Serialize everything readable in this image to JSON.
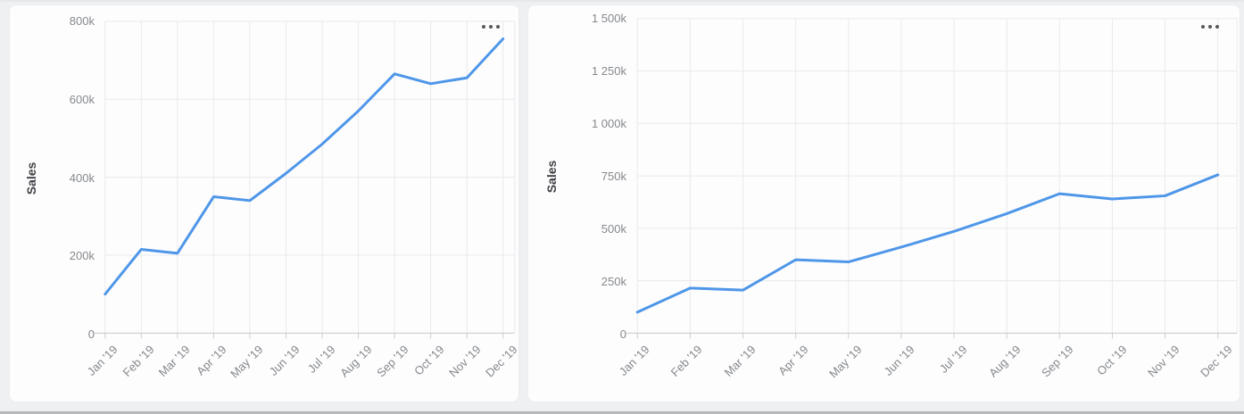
{
  "page": {
    "background": "#eff0f1",
    "card_background": "#fdfdfe"
  },
  "chart_data": [
    {
      "type": "line",
      "title": "",
      "xlabel": "",
      "ylabel": "Sales",
      "categories": [
        "Jan '19",
        "Feb '19",
        "Mar '19",
        "Apr '19",
        "May '19",
        "Jun '19",
        "Jul '19",
        "Aug '19",
        "Sep '19",
        "Oct '19",
        "Nov '19",
        "Dec '19"
      ],
      "series": [
        {
          "name": "Sales",
          "values": [
            100000,
            215000,
            205000,
            350000,
            340000,
            410000,
            485000,
            570000,
            665000,
            640000,
            655000,
            755000
          ]
        }
      ],
      "ylim": [
        0,
        800000
      ],
      "yticks": [
        0,
        200000,
        400000,
        600000,
        800000
      ],
      "ytick_labels": [
        "0",
        "200k",
        "400k",
        "600k",
        "800k"
      ],
      "grid": true,
      "legend": false,
      "line_color": "#4e96e8",
      "context_menu_icon": "ellipsis"
    },
    {
      "type": "line",
      "title": "",
      "xlabel": "",
      "ylabel": "Sales",
      "categories": [
        "Jan '19",
        "Feb '19",
        "Mar '19",
        "Apr '19",
        "May '19",
        "Jun '19",
        "Jul '19",
        "Aug '19",
        "Sep '19",
        "Oct '19",
        "Nov '19",
        "Dec '19"
      ],
      "series": [
        {
          "name": "Sales",
          "values": [
            100000,
            215000,
            205000,
            350000,
            340000,
            410000,
            485000,
            570000,
            665000,
            640000,
            655000,
            755000
          ]
        }
      ],
      "ylim": [
        0,
        1500000
      ],
      "yticks": [
        0,
        250000,
        500000,
        750000,
        1000000,
        1250000,
        1500000
      ],
      "ytick_labels": [
        "0",
        "250k",
        "500k",
        "750k",
        "1 000k",
        "1 250k",
        "1 500k"
      ],
      "grid": true,
      "legend": false,
      "line_color": "#4e96e8",
      "context_menu_icon": "ellipsis"
    }
  ]
}
